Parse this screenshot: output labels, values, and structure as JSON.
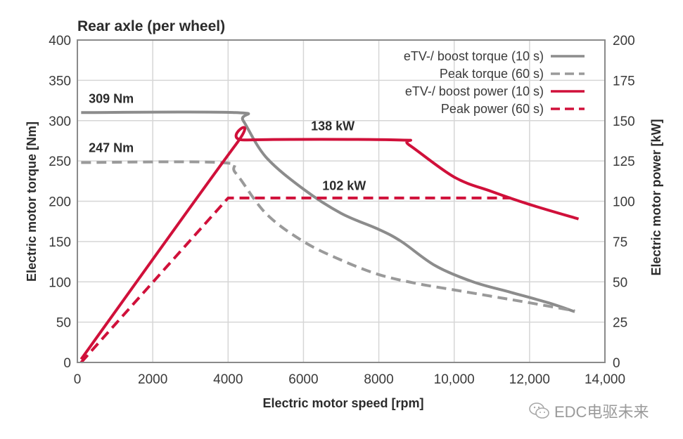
{
  "chart_data": {
    "type": "line",
    "title": "Rear axle (per wheel)",
    "xlabel": "Electric motor speed [rpm]",
    "ylabel_left": "Electric motor torque [Nm]",
    "ylabel_right": "Electric motor power [kW]",
    "xlim": [
      0,
      14000
    ],
    "ylim_left": [
      0,
      400
    ],
    "ylim_right": [
      0,
      200
    ],
    "grid": true,
    "legend_position": "top-right",
    "x_ticks": [
      0,
      2000,
      4000,
      6000,
      8000,
      10000,
      12000,
      14000
    ],
    "x_tick_labels": [
      "0",
      "2000",
      "4000",
      "6000",
      "8000",
      "10,000",
      "12,000",
      "14,000"
    ],
    "y_left_ticks": [
      0,
      50,
      100,
      150,
      200,
      250,
      300,
      350,
      400
    ],
    "y_left_tick_labels": [
      "0",
      "50",
      "100",
      "150",
      "200",
      "250",
      "300",
      "350",
      "400"
    ],
    "y_right_ticks": [
      0,
      25,
      50,
      75,
      100,
      125,
      150,
      175,
      200
    ],
    "y_right_tick_labels": [
      "0",
      "25",
      "50",
      "75",
      "100",
      "125",
      "150",
      "175",
      "200"
    ],
    "series": [
      {
        "name": "eTV-/ boost torque (10 s)",
        "axis": "left",
        "color": "#8c8c8c",
        "dash": "solid",
        "points": [
          [
            100,
            310
          ],
          [
            4200,
            310
          ],
          [
            4400,
            300
          ],
          [
            5000,
            255
          ],
          [
            6000,
            215
          ],
          [
            7000,
            185
          ],
          [
            8000,
            165
          ],
          [
            8600,
            150
          ],
          [
            9500,
            120
          ],
          [
            10500,
            100
          ],
          [
            11500,
            87
          ],
          [
            12500,
            74
          ],
          [
            13200,
            63
          ]
        ]
      },
      {
        "name": "Peak torque (60 s)",
        "axis": "left",
        "color": "#9a9a9a",
        "dash": "dashed",
        "points": [
          [
            100,
            248
          ],
          [
            3800,
            248
          ],
          [
            4200,
            235
          ],
          [
            5000,
            185
          ],
          [
            6000,
            150
          ],
          [
            7000,
            127
          ],
          [
            8000,
            109
          ],
          [
            9000,
            98
          ],
          [
            10000,
            90
          ],
          [
            11000,
            82
          ],
          [
            12000,
            74
          ],
          [
            13200,
            64
          ]
        ]
      },
      {
        "name": "eTV-/ boost power (10 s)",
        "axis": "right",
        "color": "#d0103a",
        "dash": "solid",
        "points": [
          [
            100,
            2
          ],
          [
            4200,
            135
          ],
          [
            4450,
            138
          ],
          [
            8500,
            138
          ],
          [
            8800,
            135
          ],
          [
            10000,
            115
          ],
          [
            11000,
            106
          ],
          [
            12000,
            98
          ],
          [
            13300,
            89
          ]
        ]
      },
      {
        "name": "Peak power (60 s)",
        "axis": "right",
        "color": "#d0103a",
        "dash": "dashed",
        "points": [
          [
            100,
            0
          ],
          [
            4000,
            102
          ],
          [
            11500,
            102
          ]
        ]
      }
    ],
    "annotations": [
      {
        "text": "309 Nm",
        "x": 300,
        "y_left": 322
      },
      {
        "text": "247 Nm",
        "x": 300,
        "y_left": 261
      },
      {
        "text": "138 kW",
        "x": 6200,
        "y_right": 144
      },
      {
        "text": "102 kW",
        "x": 6500,
        "y_right": 107
      }
    ]
  },
  "watermark": {
    "icon": "wechat-icon",
    "text": "EDC电驱未来"
  }
}
